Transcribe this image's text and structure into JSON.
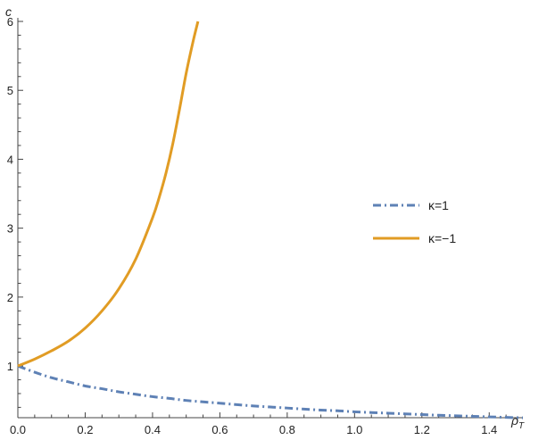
{
  "chart_data": {
    "type": "line",
    "title": "",
    "xlabel": "ρ",
    "xlabel_sub": "T",
    "ylabel": "c",
    "xlim": [
      0,
      1.5
    ],
    "ylim": [
      0.25,
      6
    ],
    "x_ticks": [
      0.0,
      0.2,
      0.4,
      0.6,
      0.8,
      1.0,
      1.2,
      1.4
    ],
    "x_tick_labels": [
      "0.0",
      "0.2",
      "0.4",
      "0.6",
      "0.8",
      "1.0",
      "1.2",
      "1.4"
    ],
    "y_ticks": [
      1,
      2,
      3,
      4,
      5,
      6
    ],
    "y_tick_labels": [
      "1",
      "2",
      "3",
      "4",
      "5",
      "6"
    ],
    "grid": false,
    "legend_position": "right",
    "series": [
      {
        "name": "κ=1",
        "color": "#5E81B5",
        "line_style": "dash-dot",
        "x": [
          0.0,
          0.05,
          0.1,
          0.15,
          0.2,
          0.25,
          0.3,
          0.35,
          0.4,
          0.45,
          0.5,
          0.55,
          0.6,
          0.65,
          0.7,
          0.75,
          0.8,
          0.85,
          0.9,
          0.95,
          1.0,
          1.05,
          1.1,
          1.15,
          1.2,
          1.25,
          1.3,
          1.35,
          1.4,
          1.45,
          1.5
        ],
        "y": [
          1.0,
          0.91,
          0.83,
          0.77,
          0.71,
          0.67,
          0.625,
          0.59,
          0.555,
          0.53,
          0.5,
          0.48,
          0.46,
          0.44,
          0.42,
          0.405,
          0.39,
          0.375,
          0.36,
          0.35,
          0.335,
          0.325,
          0.315,
          0.305,
          0.295,
          0.285,
          0.278,
          0.27,
          0.262,
          0.255,
          0.248
        ]
      },
      {
        "name": "κ=−1",
        "color": "#E19C24",
        "line_style": "solid",
        "x": [
          0.0,
          0.05,
          0.1,
          0.15,
          0.2,
          0.25,
          0.3,
          0.35,
          0.4,
          0.42,
          0.44,
          0.46,
          0.48,
          0.5,
          0.52,
          0.535
        ],
        "y": [
          1.0,
          1.1,
          1.22,
          1.36,
          1.55,
          1.8,
          2.12,
          2.55,
          3.15,
          3.45,
          3.8,
          4.22,
          4.72,
          5.25,
          5.7,
          6.0
        ]
      }
    ]
  }
}
